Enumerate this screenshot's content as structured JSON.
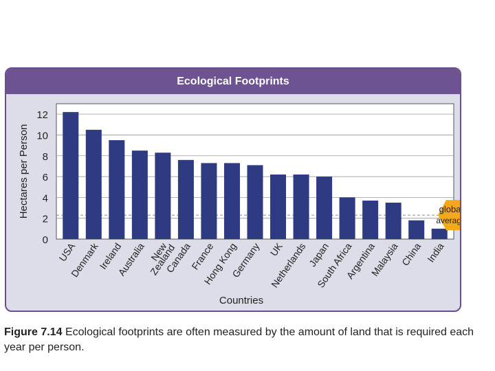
{
  "chart_data": {
    "type": "bar",
    "title": "Ecological Footprints",
    "xlabel": "Countries",
    "ylabel": "Hectares per Person",
    "ylim": [
      0,
      13
    ],
    "yticks": [
      0,
      2,
      4,
      6,
      8,
      10,
      12
    ],
    "grid": true,
    "categories": [
      "USA",
      "Denmark",
      "Ireland",
      "Australia",
      "New Zealand",
      "Canada",
      "France",
      "Hong Kong",
      "Germany",
      "UK",
      "Netherlands",
      "Japan",
      "South Africa",
      "Argentina",
      "Malaysia",
      "China",
      "India"
    ],
    "values": [
      12.2,
      10.5,
      9.5,
      8.5,
      8.3,
      7.6,
      7.3,
      7.3,
      7.1,
      6.2,
      6.2,
      6.0,
      4.0,
      3.7,
      3.5,
      1.8,
      1.0
    ],
    "bar_color": "#2e3a82",
    "global_average": {
      "value": 2.3,
      "label_line1": "global",
      "label_line2": "average",
      "color": "#f4a81d"
    }
  },
  "caption": {
    "figure_label": "Figure 7.14",
    "text": "Ecological footprints are often measured by the amount of land that is required each year per person."
  }
}
